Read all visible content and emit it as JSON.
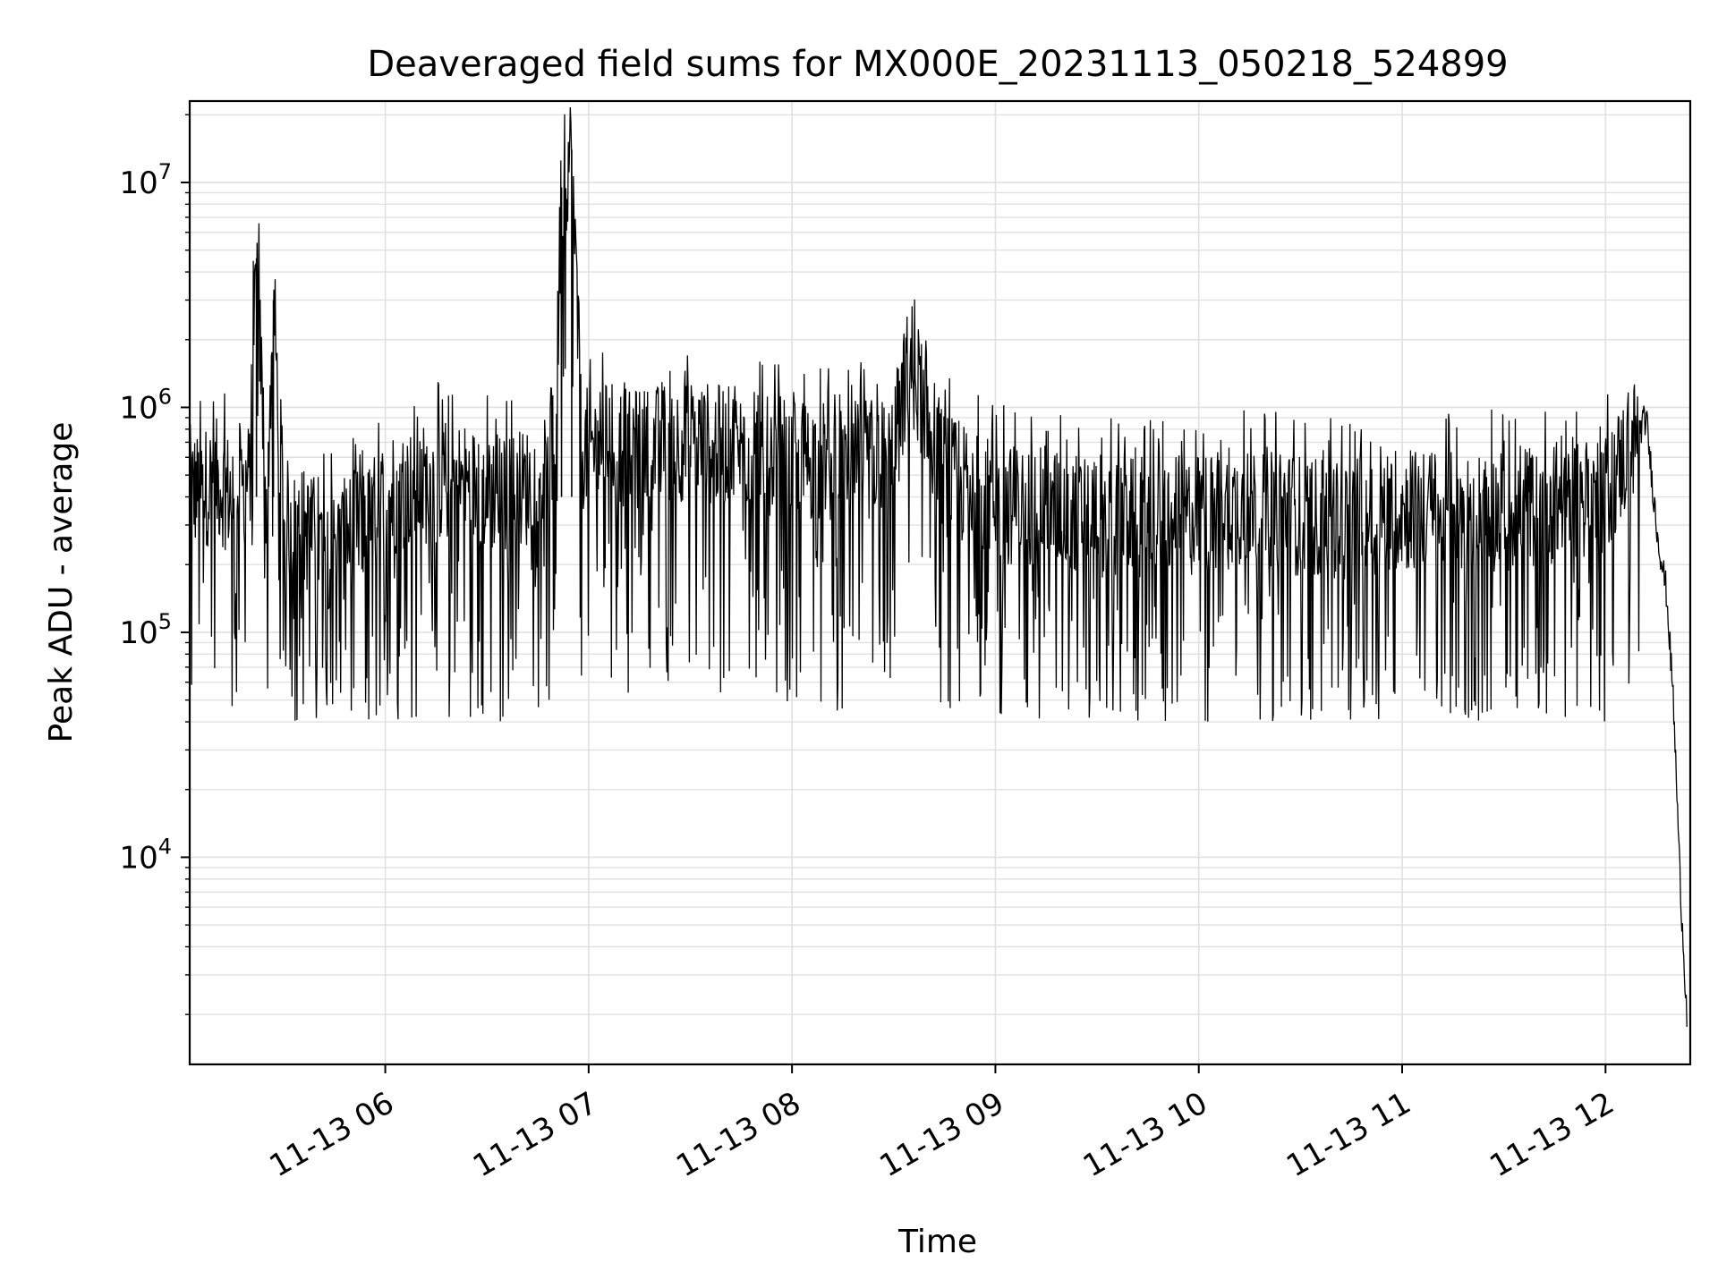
{
  "chart_data": {
    "type": "line",
    "title": "Deaveraged field sums for MX000E_20231113_050218_524899",
    "xlabel": "Time",
    "ylabel": "Peak ADU - average",
    "yscale": "log",
    "ylim": [
      1200,
      23000000
    ],
    "xlim": [
      "2023-11-13 05:02:18",
      "2023-11-13 12:25:00"
    ],
    "grid": true,
    "line_color": "#000000",
    "grid_color": "#e0e0e0",
    "x_ticks": [
      {
        "t": "2023-11-13 06:00",
        "label": "11-13 06"
      },
      {
        "t": "2023-11-13 07:00",
        "label": "11-13 07"
      },
      {
        "t": "2023-11-13 08:00",
        "label": "11-13 08"
      },
      {
        "t": "2023-11-13 09:00",
        "label": "11-13 09"
      },
      {
        "t": "2023-11-13 10:00",
        "label": "11-13 10"
      },
      {
        "t": "2023-11-13 11:00",
        "label": "11-13 11"
      },
      {
        "t": "2023-11-13 12:00",
        "label": "11-13 12"
      }
    ],
    "y_ticks": [
      {
        "value": 10000,
        "base": "10",
        "exp": "4"
      },
      {
        "value": 100000,
        "base": "10",
        "exp": "5"
      },
      {
        "value": 1000000,
        "base": "10",
        "exp": "6"
      },
      {
        "value": 10000000,
        "base": "10",
        "exp": "7"
      }
    ],
    "series": [
      {
        "x": [
          "2023-11-13 05:02:18",
          "2023-11-13 05:05",
          "2023-11-13 05:10",
          "2023-11-13 05:15",
          "2023-11-13 05:20",
          "2023-11-13 05:22",
          "2023-11-13 05:25",
          "2023-11-13 05:27",
          "2023-11-13 05:30",
          "2023-11-13 05:35",
          "2023-11-13 05:40",
          "2023-11-13 05:45",
          "2023-11-13 05:50",
          "2023-11-13 05:55",
          "2023-11-13 06:00",
          "2023-11-13 06:10",
          "2023-11-13 06:20",
          "2023-11-13 06:30",
          "2023-11-13 06:40",
          "2023-11-13 06:50",
          "2023-11-13 06:52",
          "2023-11-13 06:55",
          "2023-11-13 06:58",
          "2023-11-13 07:05",
          "2023-11-13 07:15",
          "2023-11-13 07:30",
          "2023-11-13 07:45",
          "2023-11-13 08:00",
          "2023-11-13 08:15",
          "2023-11-13 08:30",
          "2023-11-13 08:35",
          "2023-11-13 08:45",
          "2023-11-13 09:00",
          "2023-11-13 09:15",
          "2023-11-13 09:30",
          "2023-11-13 09:45",
          "2023-11-13 10:00",
          "2023-11-13 10:15",
          "2023-11-13 10:30",
          "2023-11-13 10:45",
          "2023-11-13 11:00",
          "2023-11-13 11:15",
          "2023-11-13 11:30",
          "2023-11-13 11:45",
          "2023-11-13 12:00",
          "2023-11-13 12:08",
          "2023-11-13 12:12",
          "2023-11-13 12:15",
          "2023-11-13 12:18",
          "2023-11-13 12:20",
          "2023-11-13 12:22",
          "2023-11-13 12:24"
        ],
        "values": [
          450000,
          420000,
          480000,
          400000,
          470000,
          4600000,
          350000,
          3000000,
          320000,
          300000,
          250000,
          230000,
          280000,
          300000,
          400000,
          450000,
          480000,
          420000,
          430000,
          500000,
          9500000,
          14000000,
          650000,
          700000,
          650000,
          720000,
          650000,
          600000,
          550000,
          620000,
          1650000,
          500000,
          380000,
          350000,
          330000,
          320000,
          330000,
          380000,
          330000,
          320000,
          350000,
          340000,
          350000,
          380000,
          420000,
          700000,
          900000,
          300000,
          150000,
          50000,
          8000,
          2000
        ],
        "noise_range": [
          40000,
          1500000
        ]
      }
    ]
  }
}
